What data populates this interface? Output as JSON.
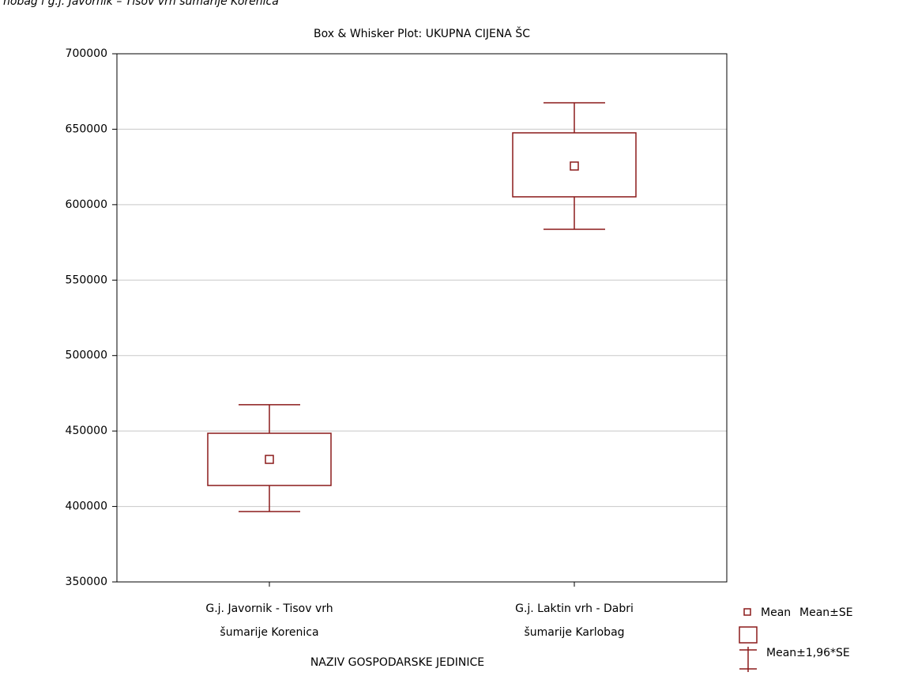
{
  "caption": "nobag i g.j. Javornik – Tisov vrh šumarije Korenica",
  "chart_data": {
    "type": "box",
    "title": "Box & Whisker Plot: UKUPNA CIJENA ŠC",
    "x_label": "NAZIV GOSPODARSKE JEDINICE",
    "categories": [
      [
        "G.j. Javornik - Tisov vrh",
        "šumarije Korenica"
      ],
      [
        "G.j. Laktin vrh - Dabri",
        "šumarije Karlobag"
      ]
    ],
    "mean": [
      431200,
      625600
    ],
    "box_low": [
      413900,
      605200
    ],
    "box_high": [
      448500,
      647600
    ],
    "whisker_low": [
      396600,
      583700
    ],
    "whisker_high": [
      467400,
      667500
    ],
    "color": "#8b1a1a",
    "ylim": [
      350000,
      700000
    ],
    "yticks": [
      350000,
      400000,
      450000,
      500000,
      550000,
      600000,
      650000,
      700000
    ],
    "grid": true,
    "legend": [
      "Mean",
      "Mean±SE",
      "Mean±1,96*SE"
    ]
  }
}
